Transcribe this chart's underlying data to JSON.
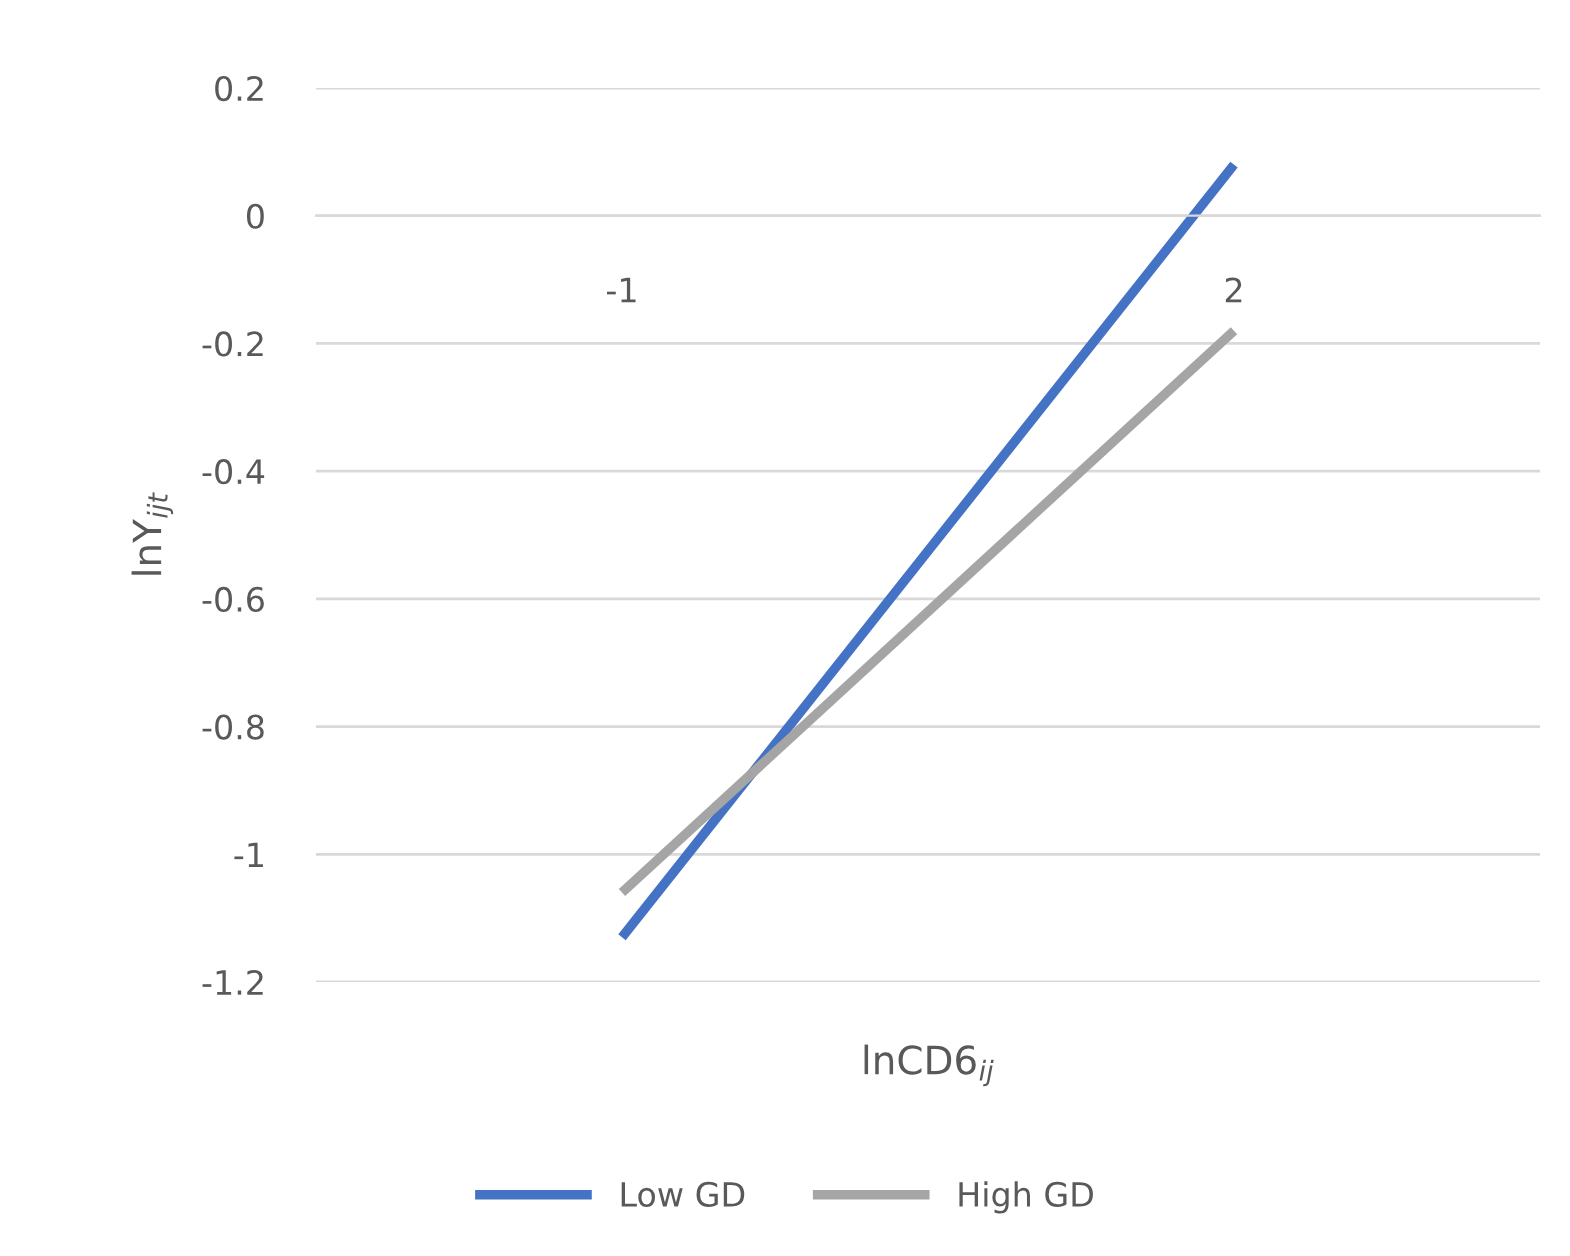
{
  "chart_data": {
    "type": "line",
    "xlabel": "lnCD6$_{ij}$",
    "ylabel": "lnY$_{ijt}$",
    "categories": [
      "-1",
      "2"
    ],
    "series": [
      {
        "name": "Low GD",
        "color": "#4472c4",
        "values": [
          -1.13,
          0.08
        ]
      },
      {
        "name": "High GD",
        "color": "#a5a5a5",
        "values": [
          -1.06,
          -0.18
        ]
      }
    ],
    "ylim": [
      -1.2,
      0.2
    ],
    "yticks": [
      0.2,
      0,
      -0.2,
      -0.4,
      -0.6,
      -0.8,
      -1,
      -1.2
    ],
    "grid": "y",
    "legend": "bottom"
  }
}
